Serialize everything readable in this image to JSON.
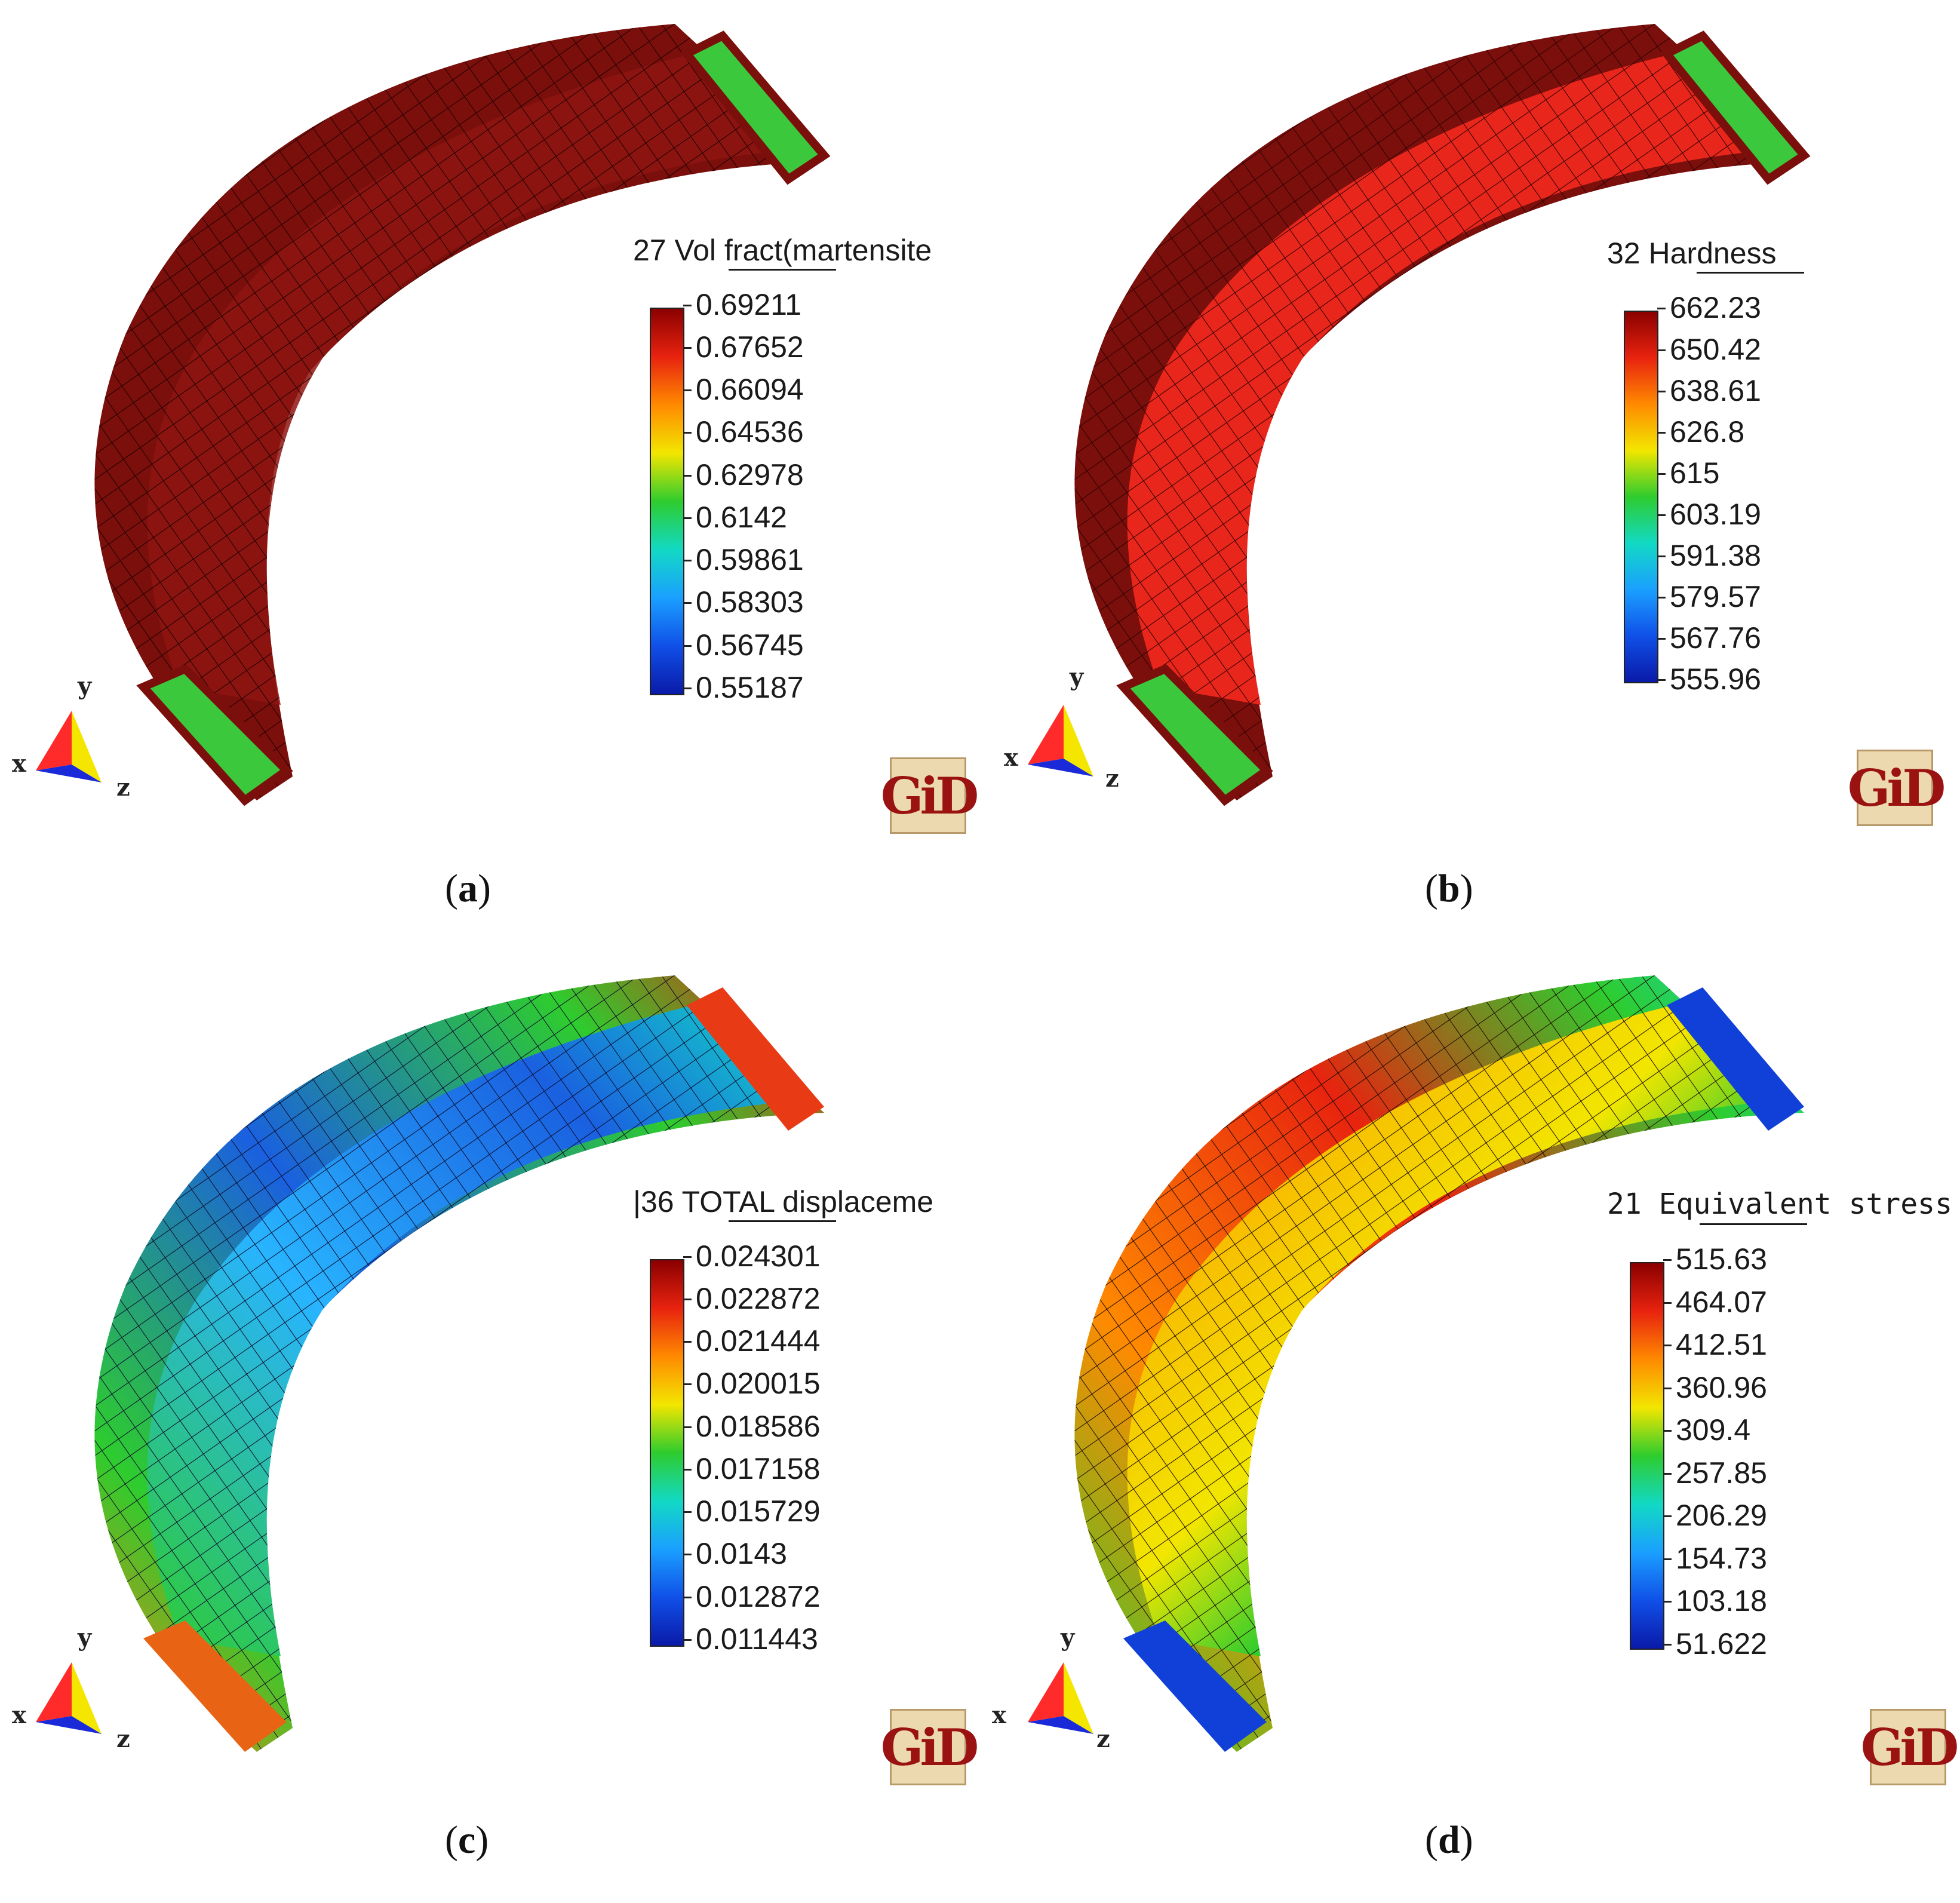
{
  "panels": [
    {
      "caption_letter": "a",
      "legend_title": "27 Vol fract(martensite",
      "ticks": [
        "0.69211",
        "0.67652",
        "0.66094",
        "0.64536",
        "0.62978",
        "0.6142",
        "0.59861",
        "0.58303",
        "0.56745",
        "0.55187"
      ],
      "logo": "GiD",
      "axes": {
        "x": "x",
        "y": "y",
        "z": "z"
      }
    },
    {
      "caption_letter": "b",
      "legend_title": "32 Hardness",
      "ticks": [
        "662.23",
        "650.42",
        "638.61",
        "626.8",
        "615",
        "603.19",
        "591.38",
        "579.57",
        "567.76",
        "555.96"
      ],
      "logo": "GiD",
      "axes": {
        "x": "x",
        "y": "y",
        "z": "z"
      }
    },
    {
      "caption_letter": "c",
      "legend_title": "|36 TOTAL displaceme",
      "ticks": [
        "0.024301",
        "0.022872",
        "0.021444",
        "0.020015",
        "0.018586",
        "0.017158",
        "0.015729",
        "0.0143",
        "0.012872",
        "0.011443"
      ],
      "logo": "GiD",
      "axes": {
        "x": "x",
        "y": "y",
        "z": "z"
      }
    },
    {
      "caption_letter": "d",
      "legend_title": "21 Equivalent stress",
      "ticks": [
        "515.63",
        "464.07",
        "412.51",
        "360.96",
        "309.4",
        "257.85",
        "206.29",
        "154.73",
        "103.18",
        "51.622"
      ],
      "logo": "GiD",
      "axes": {
        "x": "x",
        "y": "y",
        "z": "z"
      }
    }
  ],
  "colors": {
    "colormap": [
      "#8b0000",
      "#e8230f",
      "#ff8a00",
      "#f2e600",
      "#2ecc2e",
      "#12d9c4",
      "#1aa0ff",
      "#1050e8",
      "#0a1aa8"
    ],
    "panel_a_surface": "#8a1410",
    "panel_b_surface": "#e8261c",
    "panel_c_surface": "#1a6ee8",
    "panel_d_surface": "#ff7a10"
  }
}
